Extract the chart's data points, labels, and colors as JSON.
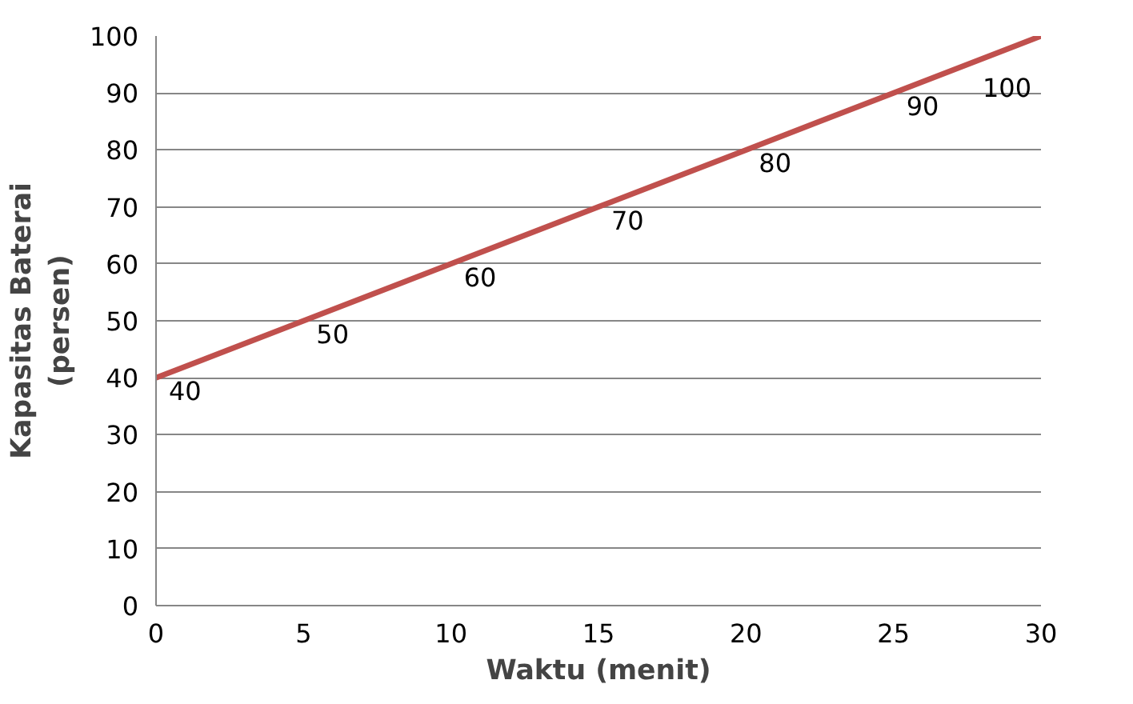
{
  "chart_data": {
    "type": "line",
    "xlabel": "Waktu (menit)",
    "ylabel": "Kapasitas Baterai\n(persen)",
    "x": [
      0,
      5,
      10,
      15,
      20,
      25,
      30
    ],
    "series": [
      {
        "color": "#c0504d",
        "values": [
          40,
          50,
          60,
          70,
          80,
          90,
          100
        ]
      }
    ],
    "xlim": [
      0,
      30
    ],
    "xticks": [
      0,
      5,
      10,
      15,
      20,
      25,
      30
    ],
    "ylim": [
      0,
      100
    ],
    "yticks": [
      0,
      10,
      20,
      30,
      40,
      50,
      60,
      70,
      80,
      90,
      100
    ],
    "grid": "y",
    "marker": "none",
    "line_style": "solid",
    "data_labels": true
  }
}
